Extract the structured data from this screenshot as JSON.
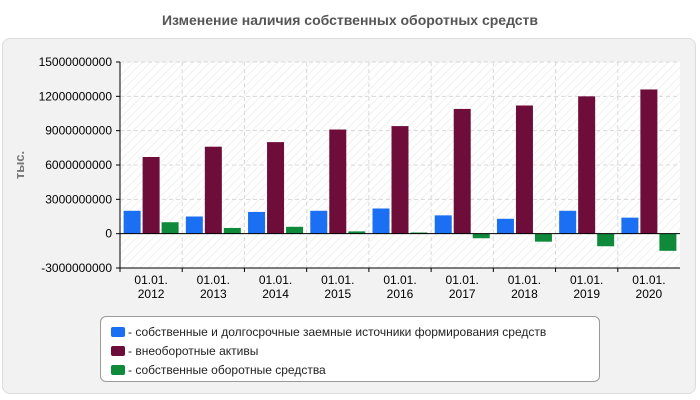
{
  "chart_data": {
    "type": "bar",
    "title": "Изменение наличия собственных оборотных средств",
    "ylabel": "тыс.",
    "xlabel": "",
    "ylim": [
      -3000000000,
      15000000000
    ],
    "yticks": [
      15000000000,
      12000000000,
      9000000000,
      6000000000,
      3000000000,
      0,
      -3000000000
    ],
    "ytick_labels": [
      "15000000000",
      "12000000000",
      "9000000000",
      "6000000000",
      "3000000000",
      "0",
      "-3000000000"
    ],
    "categories": [
      [
        "01.01.",
        "2012"
      ],
      [
        "01.01.",
        "2013"
      ],
      [
        "01.01.",
        "2014"
      ],
      [
        "01.01.",
        "2015"
      ],
      [
        "01.01.",
        "2016"
      ],
      [
        "01.01.",
        "2017"
      ],
      [
        "01.01.",
        "2018"
      ],
      [
        "01.01.",
        "2019"
      ],
      [
        "01.01.",
        "2020"
      ]
    ],
    "series": [
      {
        "name": "собственные и долгосрочные заемные источники формирования средств",
        "color": "#1a6ff2",
        "values": [
          2000000000,
          1500000000,
          1900000000,
          2000000000,
          2200000000,
          1600000000,
          1300000000,
          2000000000,
          1400000000
        ]
      },
      {
        "name": "внеоборотные активы",
        "color": "#6e0d3a",
        "values": [
          6700000000,
          7600000000,
          8000000000,
          9100000000,
          9400000000,
          10900000000,
          11200000000,
          12000000000,
          12600000000
        ]
      },
      {
        "name": "собственные оборотные средства",
        "color": "#0e8a3a",
        "values": [
          1000000000,
          500000000,
          600000000,
          200000000,
          100000000,
          -400000000,
          -700000000,
          -1100000000,
          -1500000000
        ]
      }
    ],
    "grid": true,
    "legend_position": "bottom"
  }
}
